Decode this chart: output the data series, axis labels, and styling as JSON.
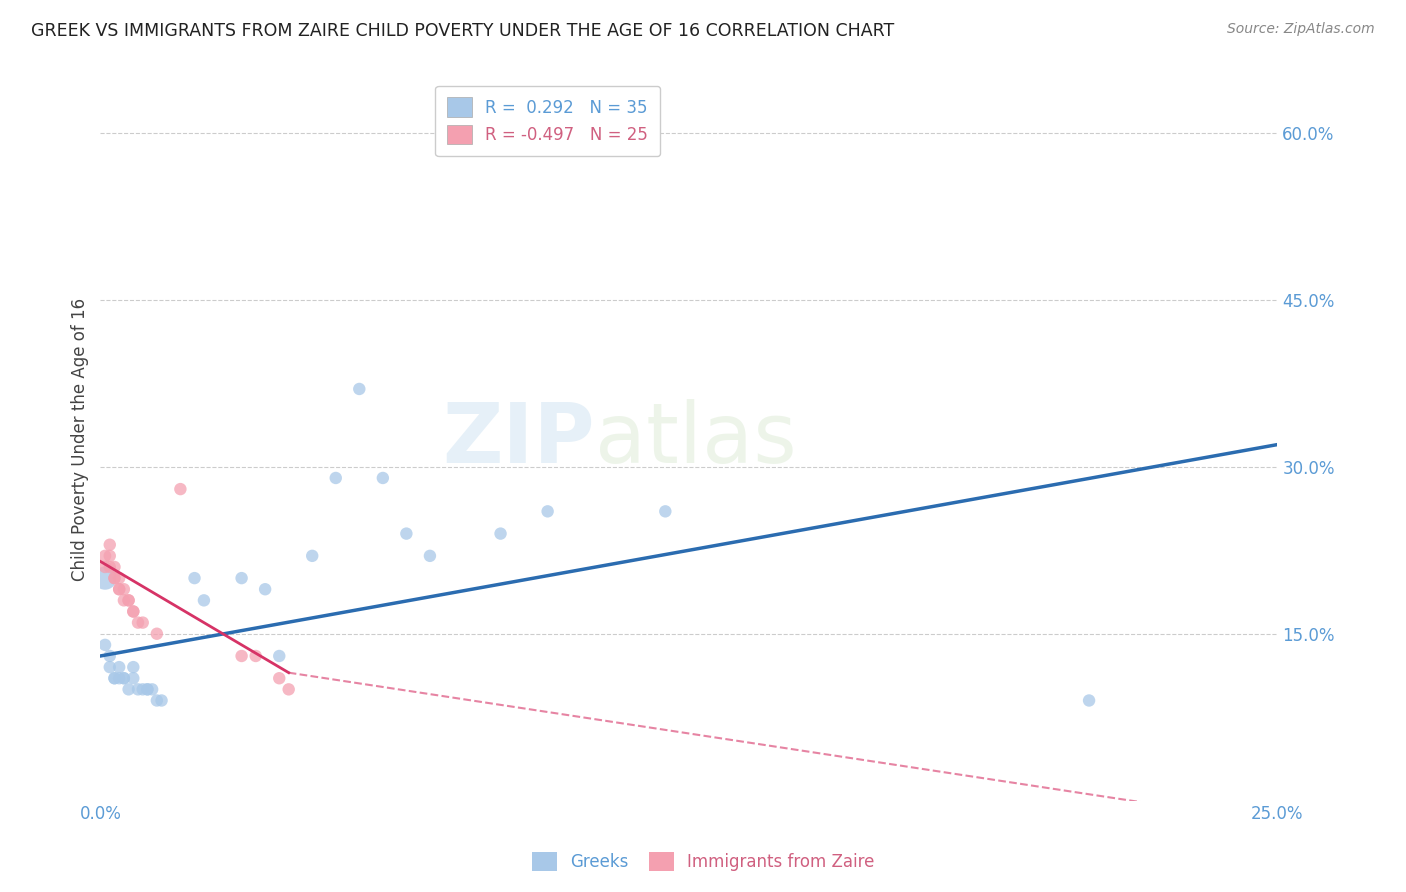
{
  "title": "GREEK VS IMMIGRANTS FROM ZAIRE CHILD POVERTY UNDER THE AGE OF 16 CORRELATION CHART",
  "source": "Source: ZipAtlas.com",
  "ylabel": "Child Poverty Under the Age of 16",
  "xlim": [
    0.0,
    0.25
  ],
  "ylim": [
    0.0,
    0.65
  ],
  "blue_color": "#a8c8e8",
  "pink_color": "#f4a0b0",
  "blue_line_color": "#2b6cb0",
  "pink_line_color": "#d63366",
  "watermark_text": "ZIPatlas",
  "greek_points": [
    [
      0.001,
      0.2
    ],
    [
      0.001,
      0.14
    ],
    [
      0.002,
      0.13
    ],
    [
      0.002,
      0.12
    ],
    [
      0.003,
      0.11
    ],
    [
      0.003,
      0.11
    ],
    [
      0.004,
      0.12
    ],
    [
      0.004,
      0.11
    ],
    [
      0.005,
      0.11
    ],
    [
      0.005,
      0.11
    ],
    [
      0.006,
      0.1
    ],
    [
      0.007,
      0.12
    ],
    [
      0.007,
      0.11
    ],
    [
      0.008,
      0.1
    ],
    [
      0.009,
      0.1
    ],
    [
      0.01,
      0.1
    ],
    [
      0.01,
      0.1
    ],
    [
      0.011,
      0.1
    ],
    [
      0.012,
      0.09
    ],
    [
      0.013,
      0.09
    ],
    [
      0.02,
      0.2
    ],
    [
      0.022,
      0.18
    ],
    [
      0.03,
      0.2
    ],
    [
      0.035,
      0.19
    ],
    [
      0.038,
      0.13
    ],
    [
      0.045,
      0.22
    ],
    [
      0.05,
      0.29
    ],
    [
      0.055,
      0.37
    ],
    [
      0.06,
      0.29
    ],
    [
      0.065,
      0.24
    ],
    [
      0.07,
      0.22
    ],
    [
      0.085,
      0.24
    ],
    [
      0.095,
      0.26
    ],
    [
      0.12,
      0.26
    ],
    [
      0.21,
      0.09
    ]
  ],
  "greek_sizes": [
    280,
    80,
    80,
    80,
    80,
    80,
    80,
    80,
    80,
    80,
    80,
    80,
    80,
    80,
    80,
    80,
    80,
    80,
    80,
    80,
    80,
    80,
    80,
    80,
    80,
    80,
    80,
    80,
    80,
    80,
    80,
    80,
    80,
    80,
    80
  ],
  "zaire_points": [
    [
      0.001,
      0.22
    ],
    [
      0.001,
      0.21
    ],
    [
      0.002,
      0.23
    ],
    [
      0.002,
      0.22
    ],
    [
      0.002,
      0.21
    ],
    [
      0.003,
      0.21
    ],
    [
      0.003,
      0.2
    ],
    [
      0.003,
      0.2
    ],
    [
      0.004,
      0.2
    ],
    [
      0.004,
      0.19
    ],
    [
      0.004,
      0.19
    ],
    [
      0.005,
      0.19
    ],
    [
      0.005,
      0.18
    ],
    [
      0.006,
      0.18
    ],
    [
      0.006,
      0.18
    ],
    [
      0.007,
      0.17
    ],
    [
      0.007,
      0.17
    ],
    [
      0.008,
      0.16
    ],
    [
      0.009,
      0.16
    ],
    [
      0.012,
      0.15
    ],
    [
      0.017,
      0.28
    ],
    [
      0.03,
      0.13
    ],
    [
      0.033,
      0.13
    ],
    [
      0.038,
      0.11
    ],
    [
      0.04,
      0.1
    ]
  ],
  "zaire_sizes": [
    80,
    80,
    80,
    80,
    80,
    80,
    80,
    80,
    80,
    80,
    80,
    80,
    80,
    80,
    80,
    80,
    80,
    80,
    80,
    80,
    80,
    80,
    80,
    80,
    80
  ],
  "greek_line": [
    [
      0.0,
      0.13
    ],
    [
      0.25,
      0.32
    ]
  ],
  "zaire_line_solid": [
    [
      0.0,
      0.215
    ],
    [
      0.04,
      0.115
    ]
  ],
  "zaire_line_dashed": [
    [
      0.04,
      0.115
    ],
    [
      0.25,
      -0.02
    ]
  ]
}
